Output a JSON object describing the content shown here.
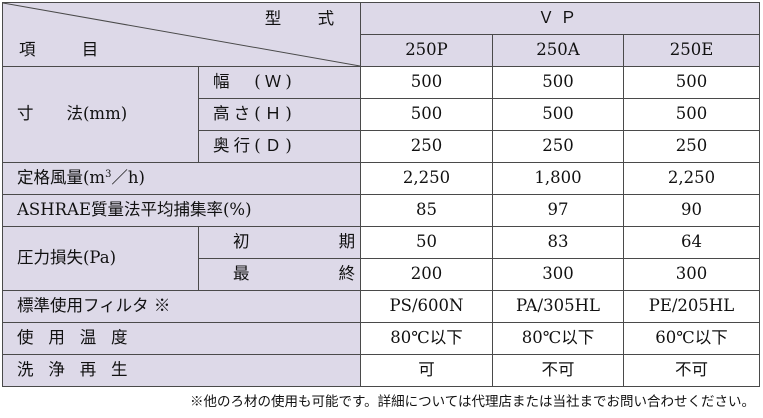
{
  "header": {
    "type_label": "型　式",
    "item_label": "項　目",
    "series": "ＶＰ",
    "models": [
      "250P",
      "250A",
      "250E"
    ]
  },
  "dimensions": {
    "group_label": "寸　　法(mm)",
    "rows": [
      {
        "label": "幅　(Ｗ)",
        "values": [
          "500",
          "500",
          "500"
        ]
      },
      {
        "label": "高さ(Ｈ)",
        "values": [
          "500",
          "500",
          "500"
        ]
      },
      {
        "label": "奥行(Ｄ)",
        "values": [
          "250",
          "250",
          "250"
        ]
      }
    ]
  },
  "airflow": {
    "label_prefix": "定格風量(m",
    "label_sup": "3",
    "label_suffix": "／h)",
    "values": [
      "2,250",
      "1,800",
      "2,250"
    ]
  },
  "ashrae": {
    "label": "ASHRAE質量法平均捕集率(%)",
    "values": [
      "85",
      "97",
      "90"
    ]
  },
  "pressure": {
    "group_label": "圧力損失(Pa)",
    "rows": [
      {
        "label": "初　期",
        "values": [
          "50",
          "83",
          "64"
        ]
      },
      {
        "label": "最　終",
        "values": [
          "200",
          "300",
          "300"
        ]
      }
    ]
  },
  "filter": {
    "label": "標準使用フィルタ ※",
    "values": [
      "PS/600N",
      "PA/305HL",
      "PE/205HL"
    ]
  },
  "temperature": {
    "label": "使用温度",
    "values": [
      "80℃以下",
      "80℃以下",
      "60℃以下"
    ]
  },
  "washing": {
    "label": "洗浄再生",
    "values": [
      "可",
      "不可",
      "不可"
    ]
  },
  "footnote": "※他のろ材の使用も可能です。詳細については代理店または当社までお問い合わせください。",
  "colors": {
    "label_background": "#ddd9e8",
    "border": "#4a4a4a",
    "text": "#111111"
  }
}
